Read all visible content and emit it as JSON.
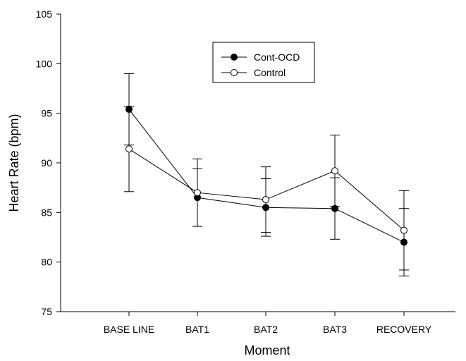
{
  "chart_data": {
    "type": "line",
    "xlabel": "Moment",
    "ylabel": "Heart Rate (bpm)",
    "ylim": [
      75,
      105
    ],
    "yticks": [
      75,
      80,
      85,
      90,
      95,
      100,
      105
    ],
    "categories": [
      "BASE LINE",
      "BAT1",
      "BAT2",
      "BAT3",
      "RECOVERY"
    ],
    "grid": false,
    "legend_position": "top-center",
    "series": [
      {
        "name": "Cont-OCD",
        "marker": "filled-circle",
        "color": "#000000",
        "values": [
          95.4,
          86.5,
          85.5,
          85.4,
          82.0
        ],
        "error": [
          3.6,
          2.9,
          2.9,
          3.1,
          3.4
        ]
      },
      {
        "name": "Control",
        "marker": "open-circle",
        "color": "#000000",
        "values": [
          91.4,
          87.0,
          86.3,
          89.2,
          83.2
        ],
        "error": [
          4.3,
          3.4,
          3.3,
          3.6,
          4.0
        ]
      }
    ]
  }
}
